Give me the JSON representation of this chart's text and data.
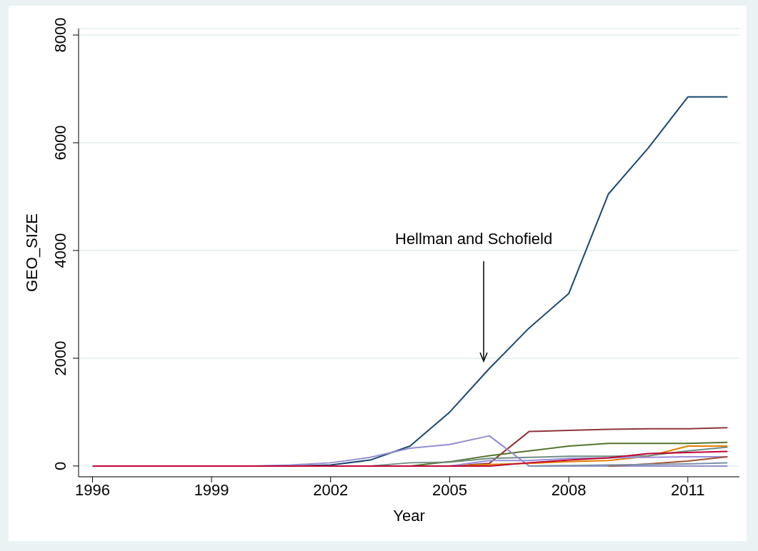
{
  "chart_data": {
    "type": "line",
    "xlabel": "Year",
    "ylabel": "GEO_SIZE",
    "x": [
      1996,
      1997,
      1998,
      1999,
      2000,
      2001,
      2002,
      2003,
      2004,
      2005,
      2006,
      2007,
      2008,
      2009,
      2010,
      2011,
      2012
    ],
    "series": [
      {
        "color": "#1a476f",
        "values": [
          null,
          null,
          null,
          null,
          null,
          0,
          20,
          110,
          370,
          1000,
          1810,
          2560,
          3200,
          5050,
          5900,
          6850,
          6850
        ]
      },
      {
        "color": "#90353b",
        "values": [
          null,
          null,
          null,
          null,
          null,
          null,
          null,
          null,
          null,
          0,
          50,
          640,
          660,
          680,
          690,
          690,
          710
        ]
      },
      {
        "color": "#55752f",
        "values": [
          null,
          null,
          null,
          null,
          null,
          null,
          null,
          null,
          0,
          80,
          190,
          280,
          370,
          420,
          420,
          420,
          440
        ]
      },
      {
        "color": "#e37e00",
        "values": [
          null,
          null,
          null,
          null,
          null,
          null,
          null,
          null,
          null,
          0,
          30,
          50,
          80,
          100,
          180,
          370,
          370
        ]
      },
      {
        "color": "#6e8e84",
        "values": [
          null,
          null,
          null,
          null,
          null,
          null,
          null,
          0,
          60,
          70,
          140,
          160,
          180,
          180,
          190,
          280,
          350
        ]
      },
      {
        "color": "#938dd2",
        "values": [
          null,
          null,
          null,
          null,
          0,
          20,
          60,
          160,
          330,
          400,
          560,
          0,
          0,
          0,
          0,
          0,
          0
        ]
      },
      {
        "color": "#9a8dd8",
        "values": [
          null,
          null,
          null,
          null,
          null,
          null,
          null,
          null,
          null,
          0,
          100,
          100,
          140,
          150,
          160,
          170,
          170
        ]
      },
      {
        "color": "#a0522d",
        "values": [
          null,
          null,
          null,
          null,
          null,
          null,
          null,
          null,
          null,
          null,
          null,
          null,
          null,
          0,
          40,
          90,
          170
        ]
      },
      {
        "color": "#7b92a8",
        "values": [
          null,
          null,
          null,
          null,
          null,
          null,
          null,
          null,
          null,
          null,
          null,
          0,
          10,
          20,
          30,
          40,
          60
        ]
      },
      {
        "color": "#c10534",
        "values": [
          0,
          0,
          0,
          0,
          0,
          0,
          0,
          0,
          0,
          0,
          0,
          60,
          110,
          150,
          230,
          250,
          270
        ]
      }
    ],
    "xlim": [
      1995.65,
      2012.3
    ],
    "xticks": [
      1996,
      1999,
      2002,
      2005,
      2008,
      2011
    ],
    "ylim": [
      -200,
      8120
    ],
    "yticks": [
      0,
      2000,
      4000,
      6000,
      8000
    ],
    "grid": "y",
    "legend": false,
    "marker": "none",
    "line_style": "solid",
    "annotations": [
      "Hellman and Schofield"
    ]
  }
}
